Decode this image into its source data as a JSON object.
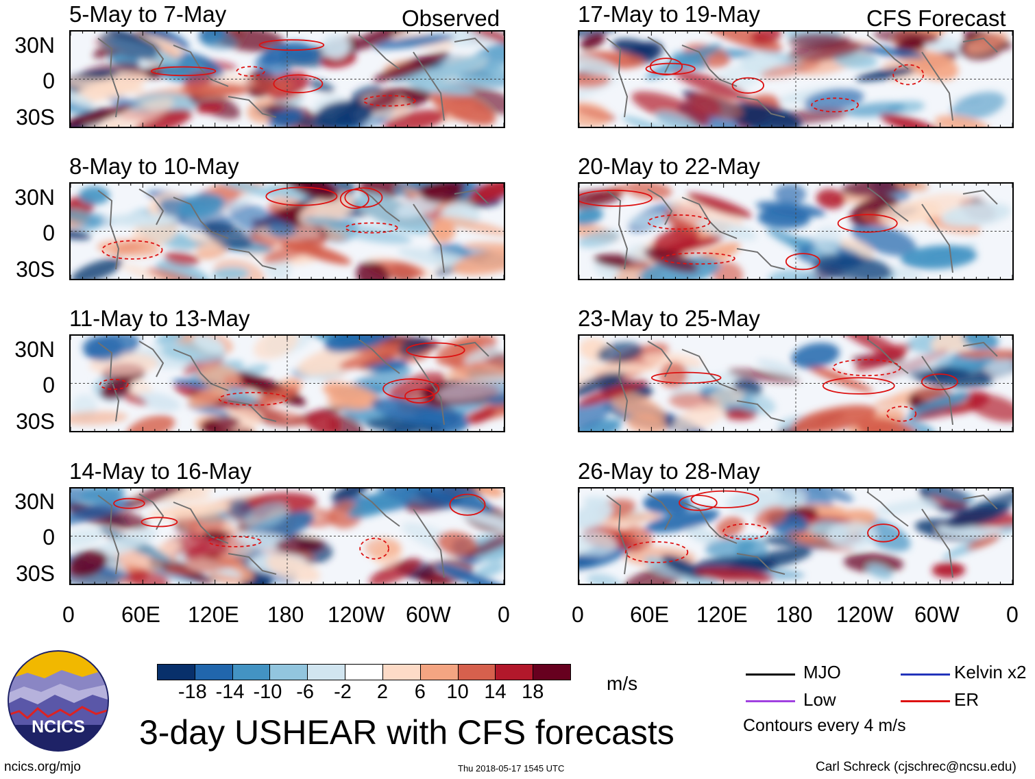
{
  "header": {
    "left": "Observed",
    "right": "CFS Forecast"
  },
  "panels": [
    {
      "title": "5-May to 7-May"
    },
    {
      "title": "17-May to 19-May"
    },
    {
      "title": "8-May to 10-May"
    },
    {
      "title": "20-May to 22-May"
    },
    {
      "title": "11-May to 13-May"
    },
    {
      "title": "23-May to 25-May"
    },
    {
      "title": "14-May to 16-May"
    },
    {
      "title": "26-May to 28-May"
    }
  ],
  "lat_labels": [
    "30N",
    "0",
    "30S"
  ],
  "lon_labels": [
    "0",
    "60E",
    "120E",
    "180",
    "120W",
    "60W",
    "0"
  ],
  "colorbar": {
    "unit": "m/s",
    "ticks": [
      "-18",
      "-14",
      "-10",
      "-6",
      "-2",
      "2",
      "6",
      "10",
      "14",
      "18"
    ],
    "colors": [
      "#08306b",
      "#2166ac",
      "#4393c3",
      "#92c5de",
      "#d1e5f0",
      "#ffffff",
      "#fddbc7",
      "#f4a582",
      "#d6604d",
      "#b2182b",
      "#67001f"
    ]
  },
  "legend": {
    "items": [
      {
        "label": "MJO",
        "color": "#000000"
      },
      {
        "label": "Kelvin x2",
        "color": "#2233bb"
      },
      {
        "label": "Low",
        "color": "#a040e0"
      },
      {
        "label": "ER",
        "color": "#dd1111"
      }
    ],
    "note": "Contours every 4 m/s"
  },
  "logo_text": "NCICS",
  "main_title": "3-day USHEAR with CFS forecasts",
  "footer": {
    "left": "ncics.org/mjo",
    "center": "Thu 2018-05-17 1545 UTC",
    "right": "Carl Schreck (cjschrec@ncsu.edu)"
  }
}
